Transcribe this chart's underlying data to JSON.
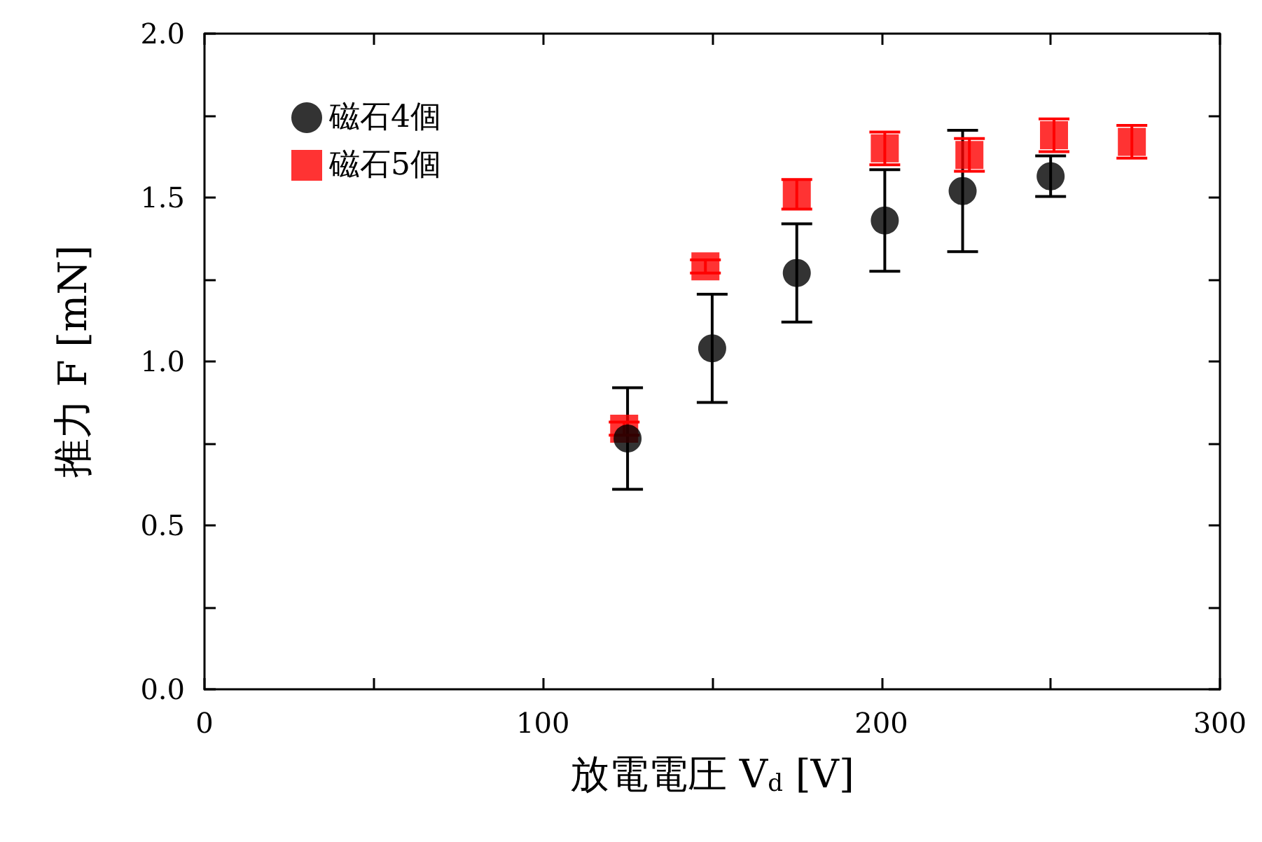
{
  "chart_data": {
    "type": "scatter",
    "xlabel": "放電電圧 V$_{d}$ [V]",
    "ylabel": "推力 F [mN]",
    "xlim": [
      0,
      300
    ],
    "xticks": [
      0,
      {
        "value": 50,
        "label": null
      },
      100,
      {
        "value": 150,
        "label": null
      },
      200,
      {
        "value": 250,
        "label": null
      },
      300
    ],
    "ylim": [
      0,
      2.0
    ],
    "yticks": [
      {
        "value": 0,
        "label": "0.0"
      },
      {
        "value": 0.25,
        "label": null
      },
      0.5,
      {
        "value": 0.75,
        "label": null
      },
      {
        "value": 1,
        "label": "1.0"
      },
      {
        "value": 1.25,
        "label": null
      },
      1.5,
      {
        "value": 1.75,
        "label": null
      },
      {
        "value": 2,
        "label": "2.0"
      }
    ],
    "legend": "top left",
    "series": [
      {
        "name": "磁石4個",
        "color": "#000000",
        "marker": "circle",
        "x": [
          125,
          150,
          175,
          201,
          224,
          250
        ],
        "values": [
          0.765,
          1.04,
          1.27,
          1.43,
          1.52,
          1.565
        ],
        "errors": [
          0.155,
          0.165,
          0.15,
          0.155,
          0.185,
          0.062
        ]
      },
      {
        "name": "磁石5個",
        "color": "#ff0000",
        "marker": "square",
        "x": [
          124,
          148,
          175,
          201,
          226,
          251,
          274
        ],
        "values": [
          0.795,
          1.29,
          1.51,
          1.65,
          1.63,
          1.69,
          1.67
        ],
        "errors": [
          0.02,
          0.02,
          0.045,
          0.05,
          0.05,
          0.05,
          0.05
        ]
      }
    ]
  }
}
